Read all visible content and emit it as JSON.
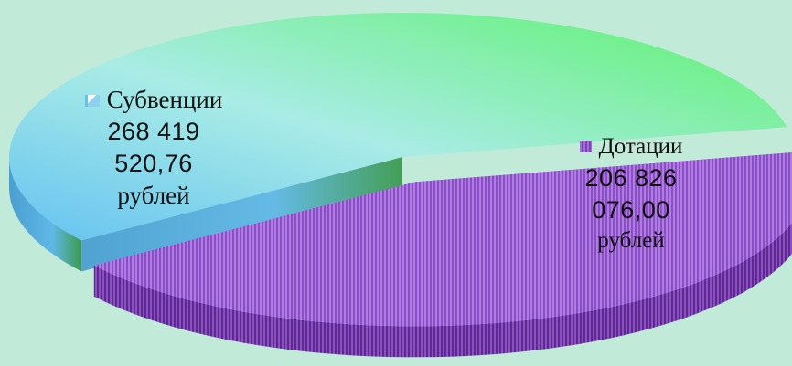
{
  "chart_data": {
    "type": "pie",
    "title": "",
    "slices": [
      {
        "name": "Субвенции",
        "value": 268419520.76,
        "value_text_1": "268  419",
        "value_text_2": "520,76",
        "unit": "рублей",
        "colors": [
          "#6fc6ef",
          "#a8ebe6",
          "#66f27a"
        ],
        "side_color": "#4f9bc8",
        "exploded": false
      },
      {
        "name": "Дотации",
        "value": 206826076.0,
        "value_text_1": "206  826",
        "value_text_2": "076,00",
        "unit": "рублей",
        "colors": [
          "#9a5fd0",
          "#7e3db5"
        ],
        "side_color": "#5e2a8a",
        "exploded": true
      }
    ],
    "background_color": "#c2ead9",
    "3d": true
  }
}
